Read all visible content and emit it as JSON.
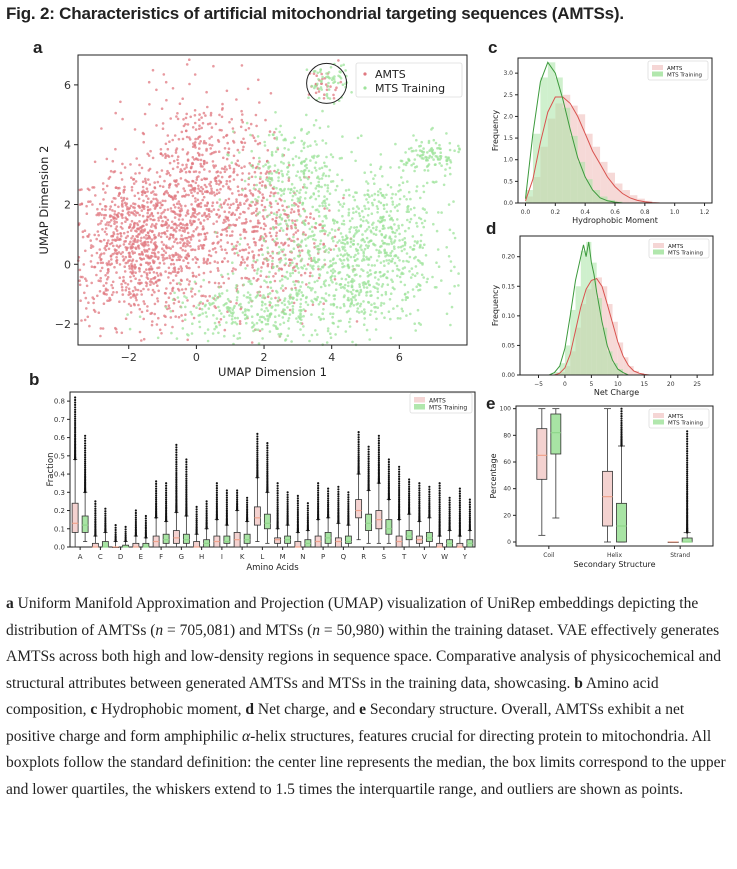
{
  "figure": {
    "title": "Fig. 2: Characteristics of artificial mitochondrial targeting sequences (AMTSs).",
    "panels": {
      "a": "a",
      "b": "b",
      "c": "c",
      "d": "d",
      "e": "e"
    }
  },
  "colors": {
    "amts": "#e07880",
    "mts": "#9ee39b",
    "amts_fill": "#f4d2d0",
    "mts_fill": "#a8e4a4",
    "amts_line": "#d9534f",
    "mts_line": "#3c9a3c",
    "median_amts": "#f0a38c",
    "median_mts": "#8fd68a"
  },
  "chart_data": [
    {
      "id": "a",
      "type": "scatter",
      "xlabel": "UMAP Dimension 1",
      "ylabel": "UMAP Dimension 2",
      "xlim": [
        -3.5,
        8.0
      ],
      "ylim": [
        -2.7,
        7.0
      ],
      "xticks": [
        "−2",
        "0",
        "2",
        "4",
        "6"
      ],
      "xtick_values": [
        -2,
        0,
        2,
        4,
        6
      ],
      "yticks": [
        "−2",
        "0",
        "2",
        "4",
        "6"
      ],
      "ytick_values": [
        -2,
        0,
        2,
        4,
        6
      ],
      "legend": {
        "placement": "top-right",
        "entries": [
          "AMTS",
          "MTS Training"
        ]
      },
      "series": [
        {
          "name": "AMTS",
          "clusters": [
            {
              "cx": -1.7,
              "cy": 0.6,
              "sx": 1.1,
              "sy": 1.3,
              "n": 1000
            },
            {
              "cx": 0.2,
              "cy": 2.5,
              "sx": 1.0,
              "sy": 1.6,
              "n": 650
            },
            {
              "cx": 2.2,
              "cy": 0.9,
              "sx": 0.9,
              "sy": 1.3,
              "n": 350
            },
            {
              "cx": 3.8,
              "cy": 6.0,
              "sx": 0.25,
              "sy": 0.3,
              "n": 30
            }
          ]
        },
        {
          "name": "MTS Training",
          "clusters": [
            {
              "cx": 4.4,
              "cy": 0.0,
              "sx": 1.3,
              "sy": 1.2,
              "n": 800
            },
            {
              "cx": 1.6,
              "cy": -1.6,
              "sx": 1.3,
              "sy": 0.5,
              "n": 280
            },
            {
              "cx": 2.9,
              "cy": 3.0,
              "sx": 0.8,
              "sy": 0.9,
              "n": 250
            },
            {
              "cx": 6.9,
              "cy": 3.6,
              "sx": 0.45,
              "sy": 0.35,
              "n": 110
            },
            {
              "cx": 3.9,
              "cy": 6.1,
              "sx": 0.3,
              "sy": 0.3,
              "n": 60
            },
            {
              "cx": 5.8,
              "cy": 1.7,
              "sx": 0.7,
              "sy": 0.8,
              "n": 170
            }
          ]
        }
      ],
      "annotation": "circle around cluster near (3.8, 6.0)"
    },
    {
      "id": "b",
      "type": "box",
      "xlabel": "Amino Acids",
      "ylabel": "Fraction",
      "ylim": [
        0,
        0.85
      ],
      "yticks": [
        "0.0",
        "0.1",
        "0.2",
        "0.3",
        "0.4",
        "0.5",
        "0.6",
        "0.7",
        "0.8"
      ],
      "ytick_values": [
        0,
        0.1,
        0.2,
        0.3,
        0.4,
        0.5,
        0.6,
        0.7,
        0.8
      ],
      "legend": {
        "placement": "top-right",
        "entries": [
          "AMTS",
          "MTS Training"
        ]
      },
      "categories": [
        "A",
        "C",
        "D",
        "E",
        "F",
        "G",
        "H",
        "I",
        "K",
        "L",
        "M",
        "N",
        "P",
        "Q",
        "R",
        "S",
        "T",
        "V",
        "W",
        "Y"
      ],
      "series": [
        {
          "name": "AMTS",
          "boxes": [
            [
              0,
              0.08,
              0.13,
              0.24,
              0.48,
              0.82
            ],
            [
              0,
              0,
              0,
              0.02,
              0.06,
              0.25
            ],
            [
              0,
              0,
              0,
              0,
              0.03,
              0.12
            ],
            [
              0,
              0,
              0,
              0.02,
              0.06,
              0.2
            ],
            [
              0,
              0,
              0.03,
              0.06,
              0.16,
              0.36
            ],
            [
              0,
              0.02,
              0.05,
              0.09,
              0.19,
              0.56
            ],
            [
              0,
              0,
              0,
              0.03,
              0.07,
              0.22
            ],
            [
              0,
              0,
              0.03,
              0.06,
              0.15,
              0.35
            ],
            [
              0,
              0,
              0.04,
              0.08,
              0.2,
              0.31
            ],
            [
              0.03,
              0.12,
              0.16,
              0.22,
              0.38,
              0.62
            ],
            [
              0,
              0.02,
              0.04,
              0.05,
              0.1,
              0.35
            ],
            [
              0,
              0,
              0,
              0.03,
              0.08,
              0.28
            ],
            [
              0,
              0,
              0.03,
              0.06,
              0.15,
              0.35
            ],
            [
              0,
              0,
              0.03,
              0.05,
              0.13,
              0.33
            ],
            [
              0.04,
              0.16,
              0.2,
              0.26,
              0.4,
              0.63
            ],
            [
              0.02,
              0.1,
              0.15,
              0.2,
              0.35,
              0.61
            ],
            [
              0,
              0,
              0.03,
              0.06,
              0.15,
              0.44
            ],
            [
              0,
              0.02,
              0.04,
              0.06,
              0.14,
              0.35
            ],
            [
              0,
              0,
              0,
              0.02,
              0.06,
              0.35
            ],
            [
              0,
              0,
              0,
              0.02,
              0.06,
              0.32
            ]
          ]
        },
        {
          "name": "MTS Training",
          "boxes": [
            [
              0.03,
              0.08,
              0.12,
              0.17,
              0.3,
              0.61
            ],
            [
              0,
              0,
              0,
              0.03,
              0.08,
              0.21
            ],
            [
              0,
              0,
              0,
              0.01,
              0.03,
              0.11
            ],
            [
              0,
              0,
              0,
              0.02,
              0.05,
              0.17
            ],
            [
              0,
              0.02,
              0.04,
              0.07,
              0.14,
              0.35
            ],
            [
              0,
              0.02,
              0.04,
              0.07,
              0.17,
              0.48
            ],
            [
              0,
              0,
              0.02,
              0.04,
              0.1,
              0.25
            ],
            [
              0,
              0.02,
              0.03,
              0.06,
              0.12,
              0.31
            ],
            [
              0,
              0.02,
              0.04,
              0.07,
              0.14,
              0.27
            ],
            [
              0.02,
              0.1,
              0.13,
              0.18,
              0.3,
              0.57
            ],
            [
              0,
              0.02,
              0.04,
              0.06,
              0.12,
              0.3
            ],
            [
              0,
              0,
              0.02,
              0.04,
              0.09,
              0.24
            ],
            [
              0,
              0.02,
              0.05,
              0.08,
              0.16,
              0.32
            ],
            [
              0,
              0.02,
              0.03,
              0.06,
              0.12,
              0.3
            ],
            [
              0.02,
              0.09,
              0.13,
              0.18,
              0.31,
              0.55
            ],
            [
              0.02,
              0.07,
              0.1,
              0.15,
              0.26,
              0.48
            ],
            [
              0,
              0.04,
              0.06,
              0.09,
              0.18,
              0.37
            ],
            [
              0,
              0.03,
              0.05,
              0.08,
              0.16,
              0.33
            ],
            [
              0,
              0,
              0.02,
              0.04,
              0.09,
              0.27
            ],
            [
              0,
              0,
              0.02,
              0.04,
              0.09,
              0.26
            ]
          ]
        }
      ]
    },
    {
      "id": "c",
      "type": "histogram",
      "xlabel": "Hydrophobic Moment",
      "ylabel": "Frequency",
      "xlim": [
        -0.05,
        1.25
      ],
      "ylim": [
        0,
        3.35
      ],
      "xticks": [
        "0.0",
        "0.2",
        "0.4",
        "0.6",
        "0.8",
        "1.0",
        "1.2"
      ],
      "xtick_values": [
        0,
        0.2,
        0.4,
        0.6,
        0.8,
        1.0,
        1.2
      ],
      "yticks": [
        "0.0",
        "0.5",
        "1.0",
        "1.5",
        "2.0",
        "2.5",
        "3.0"
      ],
      "ytick_values": [
        0,
        0.5,
        1.0,
        1.5,
        2.0,
        2.5,
        3.0
      ],
      "legend": {
        "placement": "top-right",
        "entries": [
          "AMTS",
          "MTS Training"
        ]
      },
      "bin_edges": [
        0,
        0.05,
        0.1,
        0.15,
        0.2,
        0.25,
        0.3,
        0.35,
        0.4,
        0.45,
        0.5,
        0.55,
        0.6,
        0.65,
        0.7,
        0.75,
        0.8,
        0.85,
        0.9
      ],
      "series": [
        {
          "name": "AMTS",
          "counts": [
            0.15,
            0.6,
            1.3,
            1.95,
            2.3,
            2.5,
            2.25,
            2.05,
            1.6,
            1.3,
            0.95,
            0.7,
            0.45,
            0.3,
            0.18,
            0.1,
            0.05,
            0.02
          ],
          "kde_x": [
            0,
            0.05,
            0.1,
            0.15,
            0.2,
            0.25,
            0.3,
            0.35,
            0.4,
            0.45,
            0.5,
            0.55,
            0.6,
            0.65,
            0.7,
            0.75,
            0.8,
            0.85,
            0.9
          ],
          "kde_y": [
            0.05,
            0.55,
            1.4,
            2.1,
            2.45,
            2.45,
            2.3,
            2.0,
            1.6,
            1.2,
            0.9,
            0.6,
            0.38,
            0.22,
            0.12,
            0.06,
            0.03,
            0.01,
            0
          ]
        },
        {
          "name": "MTS Training",
          "counts": [
            0.3,
            1.6,
            2.9,
            3.25,
            2.9,
            2.2,
            1.55,
            0.95,
            0.55,
            0.3,
            0.15,
            0.07,
            0.03
          ],
          "kde_x": [
            0,
            0.05,
            0.1,
            0.15,
            0.2,
            0.25,
            0.3,
            0.35,
            0.4,
            0.45,
            0.5,
            0.55,
            0.6,
            0.65
          ],
          "kde_y": [
            0.1,
            1.6,
            2.8,
            3.25,
            3.0,
            2.4,
            1.7,
            1.05,
            0.6,
            0.3,
            0.12,
            0.05,
            0.02,
            0
          ]
        }
      ]
    },
    {
      "id": "d",
      "type": "histogram",
      "xlabel": "Net Charge",
      "ylabel": "Frequency",
      "xlim": [
        -8.5,
        28
      ],
      "ylim": [
        0,
        0.235
      ],
      "xticks": [
        "−5",
        "0",
        "5",
        "10",
        "15",
        "20",
        "25"
      ],
      "xtick_values": [
        -5,
        0,
        5,
        10,
        15,
        20,
        25
      ],
      "yticks": [
        "0.00",
        "0.05",
        "0.10",
        "0.15",
        "0.20"
      ],
      "ytick_values": [
        0,
        0.05,
        0.1,
        0.15,
        0.2
      ],
      "legend": {
        "placement": "top-right",
        "entries": [
          "AMTS",
          "MTS Training"
        ]
      },
      "bin_edges": [
        -2,
        -1,
        0,
        1,
        2,
        3,
        4,
        5,
        6,
        7,
        8,
        9,
        10,
        11,
        12,
        13,
        14,
        15,
        16
      ],
      "series": [
        {
          "name": "AMTS",
          "counts": [
            0,
            0.005,
            0.015,
            0.04,
            0.08,
            0.12,
            0.145,
            0.16,
            0.165,
            0.15,
            0.12,
            0.09,
            0.055,
            0.03,
            0.015,
            0.007,
            0.003,
            0.001
          ],
          "kde_x": [
            -2,
            -1,
            0,
            1,
            2,
            3,
            4,
            5,
            6,
            7,
            8,
            9,
            10,
            11,
            12,
            13,
            14,
            15,
            16
          ],
          "kde_y": [
            0,
            0.003,
            0.012,
            0.035,
            0.075,
            0.115,
            0.145,
            0.16,
            0.163,
            0.15,
            0.12,
            0.088,
            0.056,
            0.032,
            0.016,
            0.007,
            0.003,
            0.001,
            0
          ]
        },
        {
          "name": "MTS Training",
          "counts": [
            0.005,
            0.02,
            0.05,
            0.11,
            0.15,
            0.21,
            0.225,
            0.19,
            0.13,
            0.08,
            0.04,
            0.02,
            0.01
          ],
          "kde_x": [
            -3,
            -2,
            -1,
            0,
            1,
            2,
            3,
            3.5,
            4,
            4.5,
            5,
            5.5,
            6,
            7,
            8,
            9,
            10,
            11,
            12
          ],
          "kde_y": [
            0,
            0.004,
            0.015,
            0.045,
            0.1,
            0.16,
            0.2,
            0.22,
            0.2,
            0.225,
            0.19,
            0.17,
            0.14,
            0.09,
            0.05,
            0.025,
            0.01,
            0.004,
            0
          ]
        }
      ]
    },
    {
      "id": "e",
      "type": "box",
      "xlabel": "Secondary Structure",
      "ylabel": "Percentage",
      "ylim": [
        -3,
        102
      ],
      "yticks": [
        "0",
        "20",
        "40",
        "60",
        "80",
        "100"
      ],
      "ytick_values": [
        0,
        20,
        40,
        60,
        80,
        100
      ],
      "legend": {
        "placement": "top-right",
        "entries": [
          "AMTS",
          "MTS Training"
        ]
      },
      "categories": [
        "Coil",
        "Helix",
        "Strand"
      ],
      "series": [
        {
          "name": "AMTS",
          "boxes": [
            [
              5,
              47,
              65,
              85,
              100,
              100
            ],
            [
              0,
              12,
              34,
              53,
              100,
              100
            ],
            [
              0,
              0,
              0,
              0,
              0,
              0
            ]
          ]
        },
        {
          "name": "MTS Training",
          "boxes": [
            [
              18,
              66,
              82,
              96,
              100,
              100
            ],
            [
              0,
              0,
              12,
              29,
              72,
              100
            ],
            [
              0,
              0,
              0,
              3,
              7,
              83
            ]
          ]
        }
      ]
    }
  ],
  "caption": {
    "a_label": "a",
    "a_text_1": " Uniform Manifold Approximation and Projection (UMAP) visualization of UniRep embeddings depicting the distribution of AMTSs (",
    "n1_var": "n",
    "n1_val": " = 705,081) and MTSs (",
    "n2_var": "n",
    "n2_val": " = 50,980) within the training dataset. VAE effectively generates AMTSs across both high and low-density regions in sequence space. Comparative analysis of physicochemical and structural attributes between generated AMTSs and MTSs in the training data, showcasing. ",
    "b_label": "b",
    "b_text": " Amino acid composition, ",
    "c_label": "c",
    "c_text": " Hydrophobic moment, ",
    "d_label": "d",
    "d_text": " Net charge, and ",
    "e_label": "e",
    "e_text": " Secondary structure. Overall, AMTSs exhibit a net positive charge and form amphiphilic ",
    "alpha": "α",
    "e_text_2": "-helix structures, features crucial for directing protein to mitochondria. All boxplots follow the standard definition: the center line represents the median, the box limits correspond to the upper and lower quartiles, the whiskers extend to 1.5 times the interquartile range, and outliers are shown as points."
  }
}
